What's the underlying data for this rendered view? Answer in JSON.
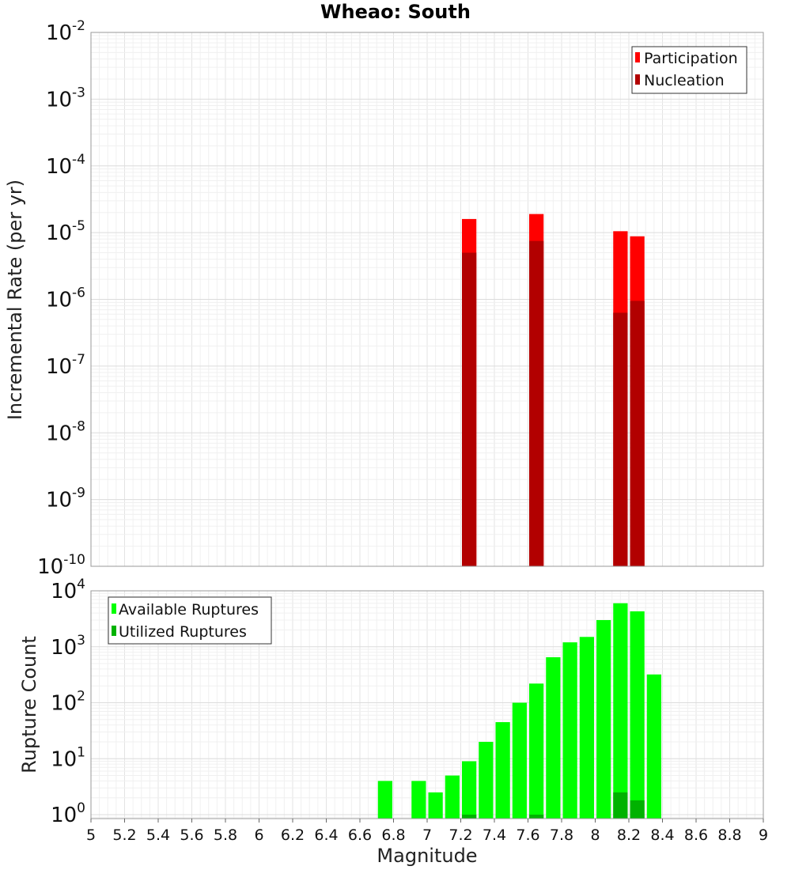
{
  "chart_data": [
    {
      "id": "top",
      "type": "bar",
      "title": "Wheao: South",
      "xlabel": "",
      "ylabel": "Incremental Rate (per yr)",
      "yscale": "log",
      "xlim": [
        5,
        9
      ],
      "ylim": [
        1e-10,
        0.01
      ],
      "bar_width": 0.1,
      "y_ticks": [
        {
          "base": "10",
          "exp": "-10",
          "value": 1e-10
        },
        {
          "base": "10",
          "exp": "-9",
          "value": 1e-09
        },
        {
          "base": "10",
          "exp": "-8",
          "value": 1e-08
        },
        {
          "base": "10",
          "exp": "-7",
          "value": 1e-07
        },
        {
          "base": "10",
          "exp": "-6",
          "value": 1e-06
        },
        {
          "base": "10",
          "exp": "-5",
          "value": 1e-05
        },
        {
          "base": "10",
          "exp": "-4",
          "value": 0.0001
        },
        {
          "base": "10",
          "exp": "-3",
          "value": 0.001
        },
        {
          "base": "10",
          "exp": "-2",
          "value": 0.01
        }
      ],
      "legend_position": "top-right",
      "series": [
        {
          "name": "Participation",
          "color": "#ff0000",
          "points": [
            {
              "x": 7.25,
              "y": 1.6e-05
            },
            {
              "x": 7.65,
              "y": 1.9e-05
            },
            {
              "x": 8.15,
              "y": 1.05e-05
            },
            {
              "x": 8.25,
              "y": 8.8e-06
            }
          ]
        },
        {
          "name": "Nucleation",
          "color": "#b20000",
          "points": [
            {
              "x": 7.25,
              "y": 5e-06
            },
            {
              "x": 7.65,
              "y": 7.5e-06
            },
            {
              "x": 8.15,
              "y": 6.3e-07
            },
            {
              "x": 8.25,
              "y": 9.5e-07
            }
          ]
        }
      ]
    },
    {
      "id": "bottom",
      "type": "bar",
      "title": "",
      "xlabel": "Magnitude",
      "ylabel": "Rupture Count",
      "yscale": "log",
      "xlim": [
        5,
        9
      ],
      "ylim": [
        0.85,
        10000
      ],
      "bar_width": 0.1,
      "x_ticks": [
        "5",
        "5.2",
        "5.4",
        "5.6",
        "5.8",
        "6",
        "6.2",
        "6.4",
        "6.6",
        "6.8",
        "7",
        "7.2",
        "7.4",
        "7.6",
        "7.8",
        "8",
        "8.2",
        "8.4",
        "8.6",
        "8.8",
        "9"
      ],
      "y_ticks": [
        {
          "base": "10",
          "exp": "0",
          "value": 1
        },
        {
          "base": "10",
          "exp": "1",
          "value": 10
        },
        {
          "base": "10",
          "exp": "2",
          "value": 100
        },
        {
          "base": "10",
          "exp": "3",
          "value": 1000
        },
        {
          "base": "10",
          "exp": "4",
          "value": 10000
        }
      ],
      "legend_position": "top-left",
      "series": [
        {
          "name": "Available Ruptures",
          "color": "#00ff00",
          "points": [
            {
              "x": 6.75,
              "y": 4
            },
            {
              "x": 6.95,
              "y": 4
            },
            {
              "x": 7.05,
              "y": 2.5
            },
            {
              "x": 7.15,
              "y": 5
            },
            {
              "x": 7.25,
              "y": 9
            },
            {
              "x": 7.35,
              "y": 20
            },
            {
              "x": 7.45,
              "y": 45
            },
            {
              "x": 7.55,
              "y": 100
            },
            {
              "x": 7.65,
              "y": 220
            },
            {
              "x": 7.75,
              "y": 650
            },
            {
              "x": 7.85,
              "y": 1200
            },
            {
              "x": 7.95,
              "y": 1500
            },
            {
              "x": 8.05,
              "y": 3000
            },
            {
              "x": 8.15,
              "y": 6000
            },
            {
              "x": 8.25,
              "y": 4300
            },
            {
              "x": 8.35,
              "y": 320
            }
          ]
        },
        {
          "name": "Utilized Ruptures",
          "color": "#00b200",
          "points": [
            {
              "x": 7.25,
              "y": 1
            },
            {
              "x": 7.65,
              "y": 1
            },
            {
              "x": 8.15,
              "y": 2.5
            },
            {
              "x": 8.25,
              "y": 1.8
            }
          ]
        }
      ]
    }
  ]
}
